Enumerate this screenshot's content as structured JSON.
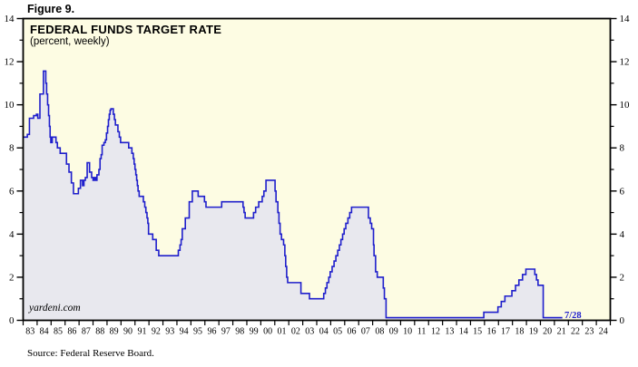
{
  "figure_label": "Figure 9.",
  "chart": {
    "title": "FEDERAL FUNDS TARGET RATE",
    "subtitle": "(percent, weekly)",
    "watermark": "yardeni.com",
    "end_label": "7/28",
    "source": "Source: Federal Reserve Board."
  },
  "colors": {
    "plot_bg": "#FDFCE3",
    "area_fill": "#E8E8EE",
    "line": "#1F1FCC",
    "axis": "#000000",
    "end_label": "#1F1FCC"
  },
  "chart_data": {
    "type": "area",
    "title": "FEDERAL FUNDS TARGET RATE",
    "subtitle": "(percent, weekly)",
    "xlabel": "",
    "ylabel": "percent",
    "x_range": [
      1983,
      2025
    ],
    "y_range": [
      0,
      14
    ],
    "y_major_ticks": [
      0,
      2,
      4,
      6,
      8,
      10,
      12,
      14
    ],
    "y_minor_ticks": [
      1,
      3,
      5,
      7,
      9,
      11,
      13
    ],
    "x_labels": [
      "83",
      "84",
      "85",
      "86",
      "87",
      "88",
      "89",
      "90",
      "91",
      "92",
      "93",
      "94",
      "95",
      "96",
      "97",
      "98",
      "99",
      "00",
      "01",
      "02",
      "03",
      "04",
      "05",
      "06",
      "07",
      "08",
      "09",
      "10",
      "11",
      "12",
      "13",
      "14",
      "15",
      "16",
      "17",
      "18",
      "19",
      "20",
      "21",
      "22",
      "23",
      "24"
    ],
    "grid": false,
    "legend": "none",
    "last_observation": "7/28",
    "series": [
      {
        "name": "Federal Funds Target Rate",
        "step": true,
        "points": [
          [
            1983.0,
            8.5
          ],
          [
            1983.3,
            8.625
          ],
          [
            1983.45,
            9.375
          ],
          [
            1983.75,
            9.5
          ],
          [
            1983.95,
            9.5625
          ],
          [
            1984.05,
            9.375
          ],
          [
            1984.2,
            10.5
          ],
          [
            1984.45,
            11.5625
          ],
          [
            1984.62,
            11.0
          ],
          [
            1984.68,
            10.5
          ],
          [
            1984.75,
            10.0
          ],
          [
            1984.82,
            9.5
          ],
          [
            1984.88,
            9.0
          ],
          [
            1984.93,
            8.5
          ],
          [
            1984.98,
            8.25
          ],
          [
            1985.08,
            8.5
          ],
          [
            1985.35,
            8.25
          ],
          [
            1985.45,
            8.0
          ],
          [
            1985.65,
            7.75
          ],
          [
            1986.1,
            7.25
          ],
          [
            1986.28,
            6.875
          ],
          [
            1986.45,
            6.375
          ],
          [
            1986.6,
            5.875
          ],
          [
            1986.95,
            6.125
          ],
          [
            1987.1,
            6.5
          ],
          [
            1987.25,
            6.25
          ],
          [
            1987.35,
            6.5
          ],
          [
            1987.45,
            6.625
          ],
          [
            1987.58,
            7.3125
          ],
          [
            1987.75,
            6.875
          ],
          [
            1987.9,
            6.625
          ],
          [
            1988.0,
            6.5
          ],
          [
            1988.1,
            6.625
          ],
          [
            1988.18,
            6.5
          ],
          [
            1988.28,
            6.75
          ],
          [
            1988.42,
            7.0
          ],
          [
            1988.5,
            7.5
          ],
          [
            1988.58,
            7.6875
          ],
          [
            1988.65,
            8.125
          ],
          [
            1988.78,
            8.25
          ],
          [
            1988.88,
            8.375
          ],
          [
            1988.96,
            8.6875
          ],
          [
            1989.04,
            9.0
          ],
          [
            1989.1,
            9.3125
          ],
          [
            1989.16,
            9.5625
          ],
          [
            1989.22,
            9.75
          ],
          [
            1989.28,
            9.8125
          ],
          [
            1989.45,
            9.5625
          ],
          [
            1989.53,
            9.3125
          ],
          [
            1989.6,
            9.0625
          ],
          [
            1989.78,
            8.75
          ],
          [
            1989.88,
            8.5
          ],
          [
            1989.97,
            8.25
          ],
          [
            1990.55,
            8.0
          ],
          [
            1990.78,
            7.75
          ],
          [
            1990.88,
            7.5
          ],
          [
            1990.94,
            7.25
          ],
          [
            1991.0,
            7.0
          ],
          [
            1991.06,
            6.75
          ],
          [
            1991.12,
            6.5
          ],
          [
            1991.17,
            6.25
          ],
          [
            1991.22,
            6.0
          ],
          [
            1991.3,
            5.75
          ],
          [
            1991.6,
            5.5
          ],
          [
            1991.7,
            5.25
          ],
          [
            1991.78,
            5.0
          ],
          [
            1991.86,
            4.75
          ],
          [
            1991.92,
            4.5
          ],
          [
            1991.97,
            4.0
          ],
          [
            1992.27,
            3.75
          ],
          [
            1992.52,
            3.25
          ],
          [
            1992.7,
            3.0
          ],
          [
            1994.1,
            3.25
          ],
          [
            1994.22,
            3.5
          ],
          [
            1994.3,
            3.75
          ],
          [
            1994.38,
            4.25
          ],
          [
            1994.6,
            4.75
          ],
          [
            1994.88,
            5.5
          ],
          [
            1995.1,
            6.0
          ],
          [
            1995.52,
            5.75
          ],
          [
            1995.97,
            5.5
          ],
          [
            1996.08,
            5.25
          ],
          [
            1997.2,
            5.5
          ],
          [
            1998.73,
            5.25
          ],
          [
            1998.8,
            5.0
          ],
          [
            1998.88,
            4.75
          ],
          [
            1999.48,
            5.0
          ],
          [
            1999.63,
            5.25
          ],
          [
            1999.85,
            5.5
          ],
          [
            2000.1,
            5.75
          ],
          [
            2000.22,
            6.0
          ],
          [
            2000.37,
            6.5
          ],
          [
            2001.02,
            6.0
          ],
          [
            2001.09,
            5.5
          ],
          [
            2001.22,
            5.0
          ],
          [
            2001.3,
            4.5
          ],
          [
            2001.38,
            4.0
          ],
          [
            2001.48,
            3.75
          ],
          [
            2001.63,
            3.5
          ],
          [
            2001.72,
            3.0
          ],
          [
            2001.78,
            2.5
          ],
          [
            2001.85,
            2.0
          ],
          [
            2001.92,
            1.75
          ],
          [
            2002.87,
            1.25
          ],
          [
            2003.48,
            1.0
          ],
          [
            2004.5,
            1.25
          ],
          [
            2004.62,
            1.5
          ],
          [
            2004.73,
            1.75
          ],
          [
            2004.86,
            2.0
          ],
          [
            2004.96,
            2.25
          ],
          [
            2005.1,
            2.5
          ],
          [
            2005.24,
            2.75
          ],
          [
            2005.37,
            3.0
          ],
          [
            2005.5,
            3.25
          ],
          [
            2005.62,
            3.5
          ],
          [
            2005.73,
            3.75
          ],
          [
            2005.85,
            4.0
          ],
          [
            2005.96,
            4.25
          ],
          [
            2006.08,
            4.5
          ],
          [
            2006.23,
            4.75
          ],
          [
            2006.36,
            5.0
          ],
          [
            2006.49,
            5.25
          ],
          [
            2007.7,
            4.75
          ],
          [
            2007.83,
            4.5
          ],
          [
            2007.93,
            4.25
          ],
          [
            2008.06,
            3.5
          ],
          [
            2008.1,
            3.0
          ],
          [
            2008.21,
            2.25
          ],
          [
            2008.33,
            2.0
          ],
          [
            2008.76,
            1.5
          ],
          [
            2008.84,
            1.0
          ],
          [
            2008.96,
            0.125
          ],
          [
            2015.95,
            0.375
          ],
          [
            2016.96,
            0.625
          ],
          [
            2017.2,
            0.875
          ],
          [
            2017.46,
            1.125
          ],
          [
            2017.96,
            1.375
          ],
          [
            2018.22,
            1.625
          ],
          [
            2018.46,
            1.875
          ],
          [
            2018.72,
            2.125
          ],
          [
            2018.96,
            2.375
          ],
          [
            2019.6,
            2.125
          ],
          [
            2019.72,
            1.875
          ],
          [
            2019.83,
            1.625
          ],
          [
            2020.2,
            0.125
          ],
          [
            2021.57,
            0.125
          ]
        ]
      }
    ]
  }
}
